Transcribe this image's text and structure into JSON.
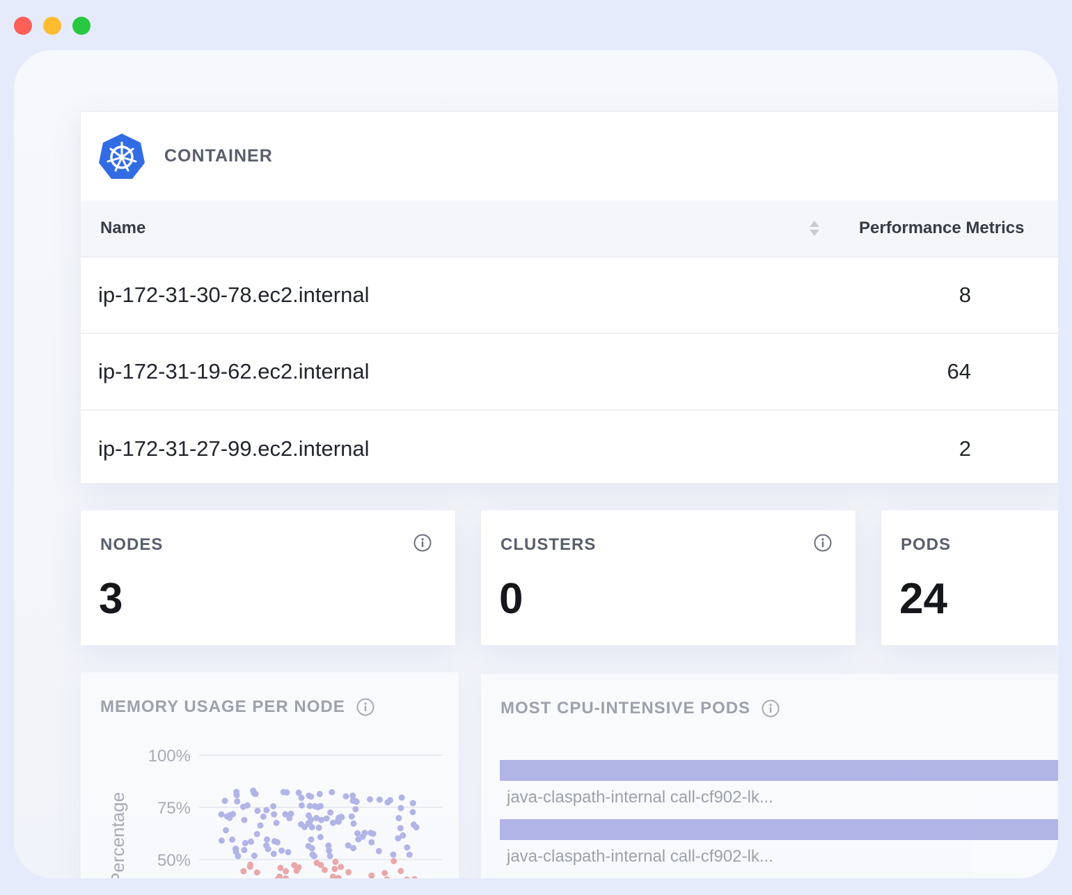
{
  "window_controls": [
    "close",
    "minimize",
    "maximize"
  ],
  "container": {
    "title": "CONTAINER",
    "columns": {
      "name": "Name",
      "metrics": "Performance Metrics"
    },
    "rows": [
      {
        "name": "ip-172-31-30-78.ec2.internal",
        "value": "8"
      },
      {
        "name": "ip-172-31-19-62.ec2.internal",
        "value": "64"
      },
      {
        "name": "ip-172-31-27-99.ec2.internal",
        "value": "2"
      }
    ]
  },
  "stats": {
    "nodes": {
      "label": "NODES",
      "value": "3"
    },
    "clusters": {
      "label": "CLUSTERS",
      "value": "0"
    },
    "pods": {
      "label": "PODS",
      "value": "24"
    }
  },
  "memory": {
    "title": "MEMORY USAGE PER NODE",
    "chart_data": {
      "type": "scatter",
      "ylabel": "Percentage",
      "yticks": [
        "100%",
        "75%",
        "50%"
      ],
      "colors": {
        "series_a": "#7d82d6",
        "series_b": "#e46a6a"
      }
    }
  },
  "cpu": {
    "title": "MOST CPU-INTENSIVE PODS",
    "pods": [
      {
        "label": "java-claspath-internal call-cf902-lk..."
      },
      {
        "label": "java-claspath-internal call-cf902-lk..."
      }
    ],
    "bar_color": "#7d82d6"
  },
  "colors": {
    "accent": "#326ce5",
    "background": "#e6ebfb"
  }
}
